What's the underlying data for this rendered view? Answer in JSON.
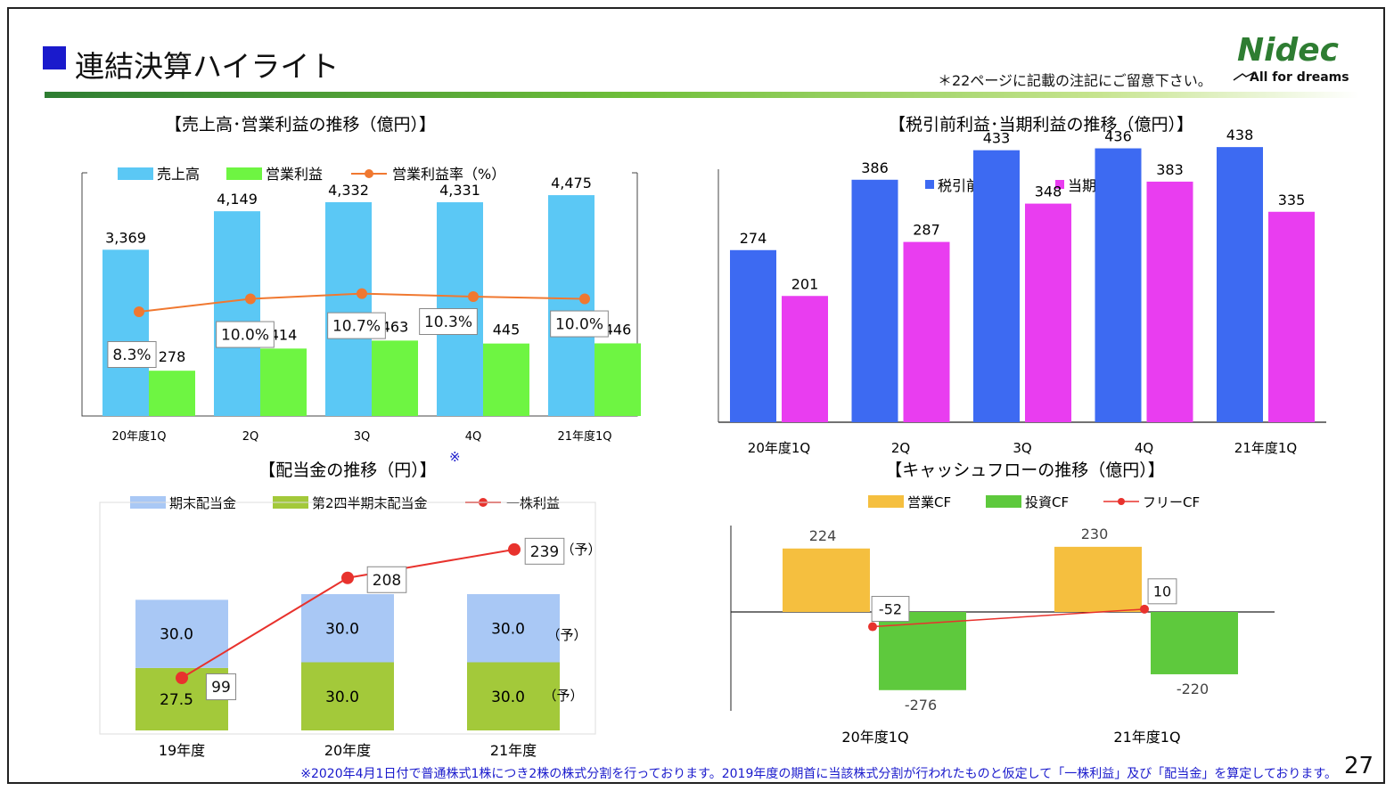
{
  "header": {
    "title": "連結決算ハイライト",
    "note": "＊22ページに記載の注記にご留意下さい。",
    "logo": {
      "brand": "Nidec",
      "tagline": "All for dreams",
      "brand_color": "#2e7d32"
    },
    "page_number": "27"
  },
  "footnote": "※2020年4月1日付で普通株式1株につき2株の株式分割を行っております。2019年度の期首に当該株式分割が行われたものと仮定して「一株利益」及び「配当金」を算定しております。",
  "colors": {
    "sales": "#5bc8f5",
    "op_income": "#6ef542",
    "op_margin": "#f07830",
    "pretax": "#3d6af2",
    "net": "#e93df0",
    "dividend_end": "#a9c8f5",
    "dividend_q2": "#a3c93a",
    "eps": "#e8322d",
    "ocf": "#f5bf3f",
    "icf": "#5ec93d",
    "fcf": "#e8322d"
  },
  "chart_data": [
    {
      "id": "sales_op",
      "type": "bar",
      "title": "【売上高･営業利益の推移（億円）】",
      "categories": [
        "20年度1Q",
        "2Q",
        "3Q",
        "4Q",
        "21年度1Q"
      ],
      "series": [
        {
          "name": "売上高",
          "values": [
            3369,
            4149,
            4332,
            4331,
            4475
          ],
          "labels": [
            "3,369",
            "4,149",
            "4,332",
            "4,331",
            "4,475"
          ]
        },
        {
          "name": "営業利益",
          "values": [
            278,
            414,
            463,
            445,
            446
          ],
          "labels": [
            "278",
            "414",
            "463",
            "445",
            "446"
          ]
        },
        {
          "name": "営業利益率（%）",
          "type": "line",
          "values": [
            8.3,
            10.0,
            10.7,
            10.3,
            10.0
          ],
          "labels": [
            "8.3%",
            "10.0%",
            "10.7%",
            "10.3%",
            "10.0%"
          ]
        }
      ],
      "legend": "top"
    },
    {
      "id": "pretax_net",
      "type": "bar",
      "title": "【税引前利益･当期利益の推移（億円）】",
      "categories": [
        "20年度1Q",
        "2Q",
        "3Q",
        "4Q",
        "21年度1Q"
      ],
      "series": [
        {
          "name": "税引前利益",
          "values": [
            274,
            386,
            433,
            436,
            438
          ]
        },
        {
          "name": "当期利益",
          "values": [
            201,
            287,
            348,
            383,
            335
          ]
        }
      ],
      "ylim": [
        0,
        500
      ],
      "legend": "top"
    },
    {
      "id": "dividend",
      "type": "bar",
      "title": "【配当金の推移（円）】",
      "title_mark": "※",
      "categories": [
        "19年度",
        "20年度",
        "21年度"
      ],
      "series": [
        {
          "name": "期末配当金",
          "values": [
            30.0,
            30.0,
            30.0
          ],
          "labels": [
            "30.0",
            "30.0",
            "30.0"
          ]
        },
        {
          "name": "第2四半期末配当金",
          "values": [
            27.5,
            30.0,
            30.0
          ],
          "labels": [
            "27.5",
            "30.0",
            "30.0"
          ]
        },
        {
          "name": "一株利益",
          "type": "line",
          "values": [
            99,
            208,
            239
          ]
        }
      ],
      "forecast_mark": "（予）",
      "stacked": true,
      "legend": "top"
    },
    {
      "id": "cashflow",
      "type": "bar",
      "title": "【キャッシュフローの推移（億円）】",
      "categories": [
        "20年度1Q",
        "21年度1Q"
      ],
      "series": [
        {
          "name": "営業CF",
          "values": [
            224,
            230
          ]
        },
        {
          "name": "投資CF",
          "values": [
            -276,
            -220
          ]
        },
        {
          "name": "フリーCF",
          "type": "line",
          "values": [
            -52,
            10
          ]
        }
      ],
      "legend": "top"
    }
  ]
}
